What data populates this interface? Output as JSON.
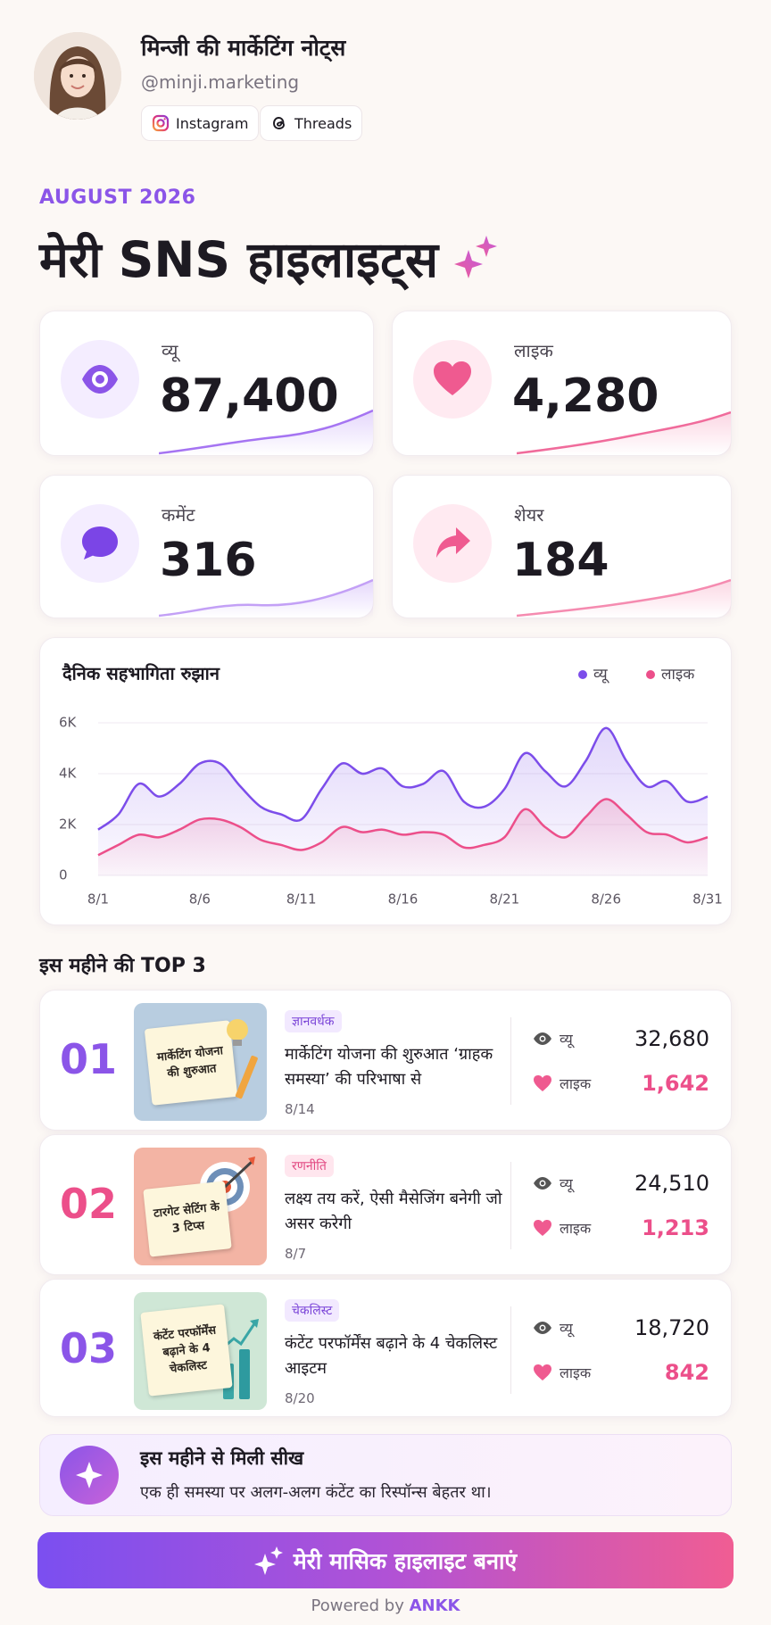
{
  "profile": {
    "name": "मिन्जी की मार्केटिंग नोट्स",
    "handle": "@minji.marketing",
    "links": [
      "Instagram",
      "Threads"
    ]
  },
  "header": {
    "period": "AUGUST 2026",
    "title": "मेरी SNS हाइलाइट्स"
  },
  "stats": [
    {
      "label": "व्यू",
      "value": "87,400"
    },
    {
      "label": "लाइक",
      "value": "4,280"
    },
    {
      "label": "कमेंट",
      "value": "316"
    },
    {
      "label": "शेयर",
      "value": "184"
    }
  ],
  "chart_data": {
    "type": "line",
    "title": "दैनिक सहभागिता रुझान",
    "categories": [
      "8/1",
      null,
      null,
      null,
      null,
      "8/6",
      null,
      null,
      null,
      null,
      "8/11",
      null,
      null,
      null,
      null,
      "8/16",
      null,
      null,
      null,
      null,
      "8/21",
      null,
      null,
      null,
      null,
      "8/26",
      null,
      null,
      null,
      null,
      "8/31"
    ],
    "series": [
      {
        "name": "व्यू",
        "color": "#7c4dea",
        "values": [
          1800,
          2400,
          3600,
          3100,
          3600,
          4400,
          4400,
          3500,
          2700,
          2400,
          2200,
          3400,
          4400,
          4000,
          4200,
          3500,
          3600,
          4100,
          2900,
          2700,
          3400,
          4800,
          4100,
          3500,
          4500,
          5800,
          4500,
          3500,
          3700,
          2900,
          3100
        ]
      },
      {
        "name": "लाइक",
        "color": "#ec4f8a",
        "values": [
          800,
          1200,
          1600,
          1500,
          1800,
          2200,
          2200,
          1900,
          1400,
          1200,
          1000,
          1300,
          1900,
          1700,
          1800,
          1600,
          1700,
          1600,
          1100,
          1200,
          1500,
          2600,
          1900,
          1500,
          2300,
          3000,
          2400,
          1700,
          1600,
          1300,
          1500
        ]
      }
    ],
    "ylim": [
      0,
      6000
    ],
    "yticks": [
      0,
      {
        "value": 2000,
        "label": "2K"
      },
      {
        "value": 4000,
        "label": "4K"
      },
      {
        "value": 6000,
        "label": "6K"
      }
    ],
    "grid": true,
    "legend": "top-right"
  },
  "top3": {
    "title": "इस महीने की TOP 3",
    "items": [
      {
        "rank": "01",
        "thumb_text": "मार्केटिंग योजना की शुरुआत",
        "tag": "ज्ञानवर्धक",
        "title": "मार्केटिंग योजना की शुरुआत ‘ग्राहक समस्या’ की परिभाषा से",
        "date": "8/14",
        "views_label": "व्यू",
        "views": "32,680",
        "likes_label": "लाइक",
        "likes": "1,642"
      },
      {
        "rank": "02",
        "thumb_text": "टारगेट सेटिंग के 3 टिप्स",
        "tag": "रणनीति",
        "title": "लक्ष्य तय करें, ऐसी मैसेजिंग बनेगी जो असर करेगी",
        "date": "8/7",
        "views_label": "व्यू",
        "views": "24,510",
        "likes_label": "लाइक",
        "likes": "1,213"
      },
      {
        "rank": "03",
        "thumb_text": "कंटेंट परफॉर्मेंस बढ़ाने के 4 चेकलिस्ट",
        "tag": "चेकलिस्ट",
        "title": "कंटेंट परफॉर्मेंस बढ़ाने के 4 चेकलिस्ट आइटम",
        "date": "8/20",
        "views_label": "व्यू",
        "views": "18,720",
        "likes_label": "लाइक",
        "likes": "842"
      }
    ]
  },
  "insight": {
    "title": "इस महीने से मिली सीख",
    "text": "एक ही समस्या पर अलग-अलग कंटेंट का रिस्पॉन्स बेहतर था।"
  },
  "cta": "मेरी मासिक हाइलाइट बनाएं",
  "footer": {
    "prefix": "Powered by",
    "brand": "ANKK"
  }
}
